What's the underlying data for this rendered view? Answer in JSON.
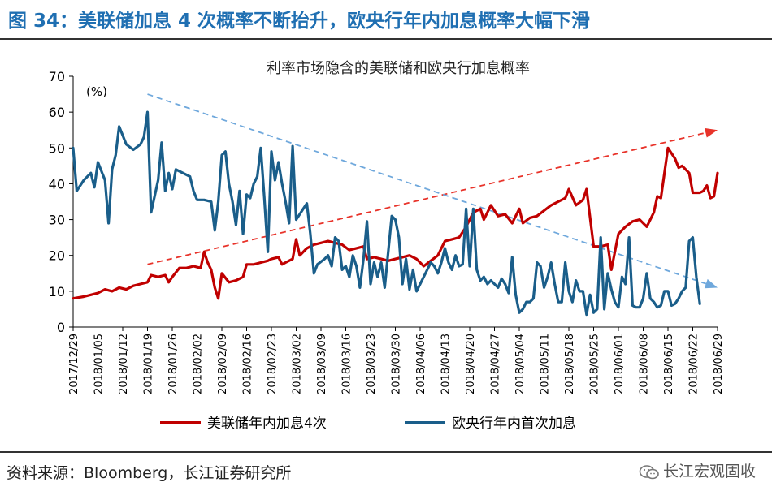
{
  "header": {
    "figure_title": "图 34：美联储加息 4 次概率不断抬升，欧央行年内加息概率大幅下滑"
  },
  "footer": {
    "source": "资料来源：Bloomberg，长江证券研究所",
    "brand": "长江宏观固收",
    "brand_icon": "wechat-icon"
  },
  "chart_data": {
    "type": "line",
    "title": "利率市场隐含的美联储和欧央行加息概率",
    "unit_label": "(%)",
    "ylim": [
      0,
      70
    ],
    "yticks": [
      0,
      10,
      20,
      30,
      40,
      50,
      60,
      70
    ],
    "xlim": [
      "2017-12-29",
      "2018-06-29"
    ],
    "xtick_labels": [
      "2017/12/29",
      "2018/01/05",
      "2018/01/12",
      "2018/01/19",
      "2018/01/26",
      "2018/02/02",
      "2018/02/09",
      "2018/02/16",
      "2018/02/23",
      "2018/03/02",
      "2018/03/09",
      "2018/03/16",
      "2018/03/23",
      "2018/03/30",
      "2018/04/06",
      "2018/04/13",
      "2018/04/20",
      "2018/04/27",
      "2018/05/04",
      "2018/05/11",
      "2018/05/18",
      "2018/05/25",
      "2018/06/01",
      "2018/06/08",
      "2018/06/15",
      "2018/06/22",
      "2018/06/29"
    ],
    "legend_position": "bottom",
    "series": [
      {
        "name": "美联储年内加息4次",
        "color": "#c00000",
        "points": [
          [
            "2017-12-29",
            8
          ],
          [
            "2018-01-01",
            8.5
          ],
          [
            "2018-01-03",
            9
          ],
          [
            "2018-01-05",
            9.5
          ],
          [
            "2018-01-07",
            10.5
          ],
          [
            "2018-01-09",
            10
          ],
          [
            "2018-01-11",
            11
          ],
          [
            "2018-01-13",
            10.5
          ],
          [
            "2018-01-15",
            11.5
          ],
          [
            "2018-01-17",
            12
          ],
          [
            "2018-01-19",
            12.5
          ],
          [
            "2018-01-20",
            14.5
          ],
          [
            "2018-01-22",
            14
          ],
          [
            "2018-01-24",
            14.5
          ],
          [
            "2018-01-25",
            12.5
          ],
          [
            "2018-01-26",
            14
          ],
          [
            "2018-01-28",
            16.5
          ],
          [
            "2018-01-30",
            16.5
          ],
          [
            "2018-02-01",
            17
          ],
          [
            "2018-02-03",
            16.5
          ],
          [
            "2018-02-04",
            21
          ],
          [
            "2018-02-05",
            18
          ],
          [
            "2018-02-06",
            16
          ],
          [
            "2018-02-07",
            11
          ],
          [
            "2018-02-08",
            8
          ],
          [
            "2018-02-09",
            15
          ],
          [
            "2018-02-11",
            12.5
          ],
          [
            "2018-02-13",
            13
          ],
          [
            "2018-02-15",
            14
          ],
          [
            "2018-02-16",
            17.5
          ],
          [
            "2018-02-18",
            17.5
          ],
          [
            "2018-02-20",
            18
          ],
          [
            "2018-02-22",
            18.5
          ],
          [
            "2018-02-23",
            19
          ],
          [
            "2018-02-25",
            19.5
          ],
          [
            "2018-02-26",
            17.5
          ],
          [
            "2018-02-27",
            18
          ],
          [
            "2018-03-01",
            19
          ],
          [
            "2018-03-02",
            24.5
          ],
          [
            "2018-03-03",
            20
          ],
          [
            "2018-03-05",
            22
          ],
          [
            "2018-03-07",
            23
          ],
          [
            "2018-03-09",
            23.5
          ],
          [
            "2018-03-11",
            24
          ],
          [
            "2018-03-13",
            23.5
          ],
          [
            "2018-03-15",
            23
          ],
          [
            "2018-03-17",
            21.5
          ],
          [
            "2018-03-19",
            22
          ],
          [
            "2018-03-21",
            22.5
          ],
          [
            "2018-03-22",
            19
          ],
          [
            "2018-03-24",
            19.5
          ],
          [
            "2018-03-26",
            19
          ],
          [
            "2018-03-28",
            18.5
          ],
          [
            "2018-03-30",
            19
          ],
          [
            "2018-04-01",
            19.5
          ],
          [
            "2018-04-03",
            20
          ],
          [
            "2018-04-05",
            19
          ],
          [
            "2018-04-07",
            17
          ],
          [
            "2018-04-09",
            18.5
          ],
          [
            "2018-04-11",
            20
          ],
          [
            "2018-04-13",
            24
          ],
          [
            "2018-04-15",
            24.5
          ],
          [
            "2018-04-17",
            25
          ],
          [
            "2018-04-19",
            28
          ],
          [
            "2018-04-21",
            32
          ],
          [
            "2018-04-23",
            33
          ],
          [
            "2018-04-24",
            30
          ],
          [
            "2018-04-26",
            34
          ],
          [
            "2018-04-28",
            31
          ],
          [
            "2018-04-30",
            31.5
          ],
          [
            "2018-05-02",
            29
          ],
          [
            "2018-05-04",
            33
          ],
          [
            "2018-05-05",
            29
          ],
          [
            "2018-05-07",
            30.5
          ],
          [
            "2018-05-09",
            31
          ],
          [
            "2018-05-11",
            32.5
          ],
          [
            "2018-05-13",
            34
          ],
          [
            "2018-05-15",
            35
          ],
          [
            "2018-05-17",
            36
          ],
          [
            "2018-05-18",
            38.5
          ],
          [
            "2018-05-20",
            34
          ],
          [
            "2018-05-22",
            35.5
          ],
          [
            "2018-05-23",
            38.5
          ],
          [
            "2018-05-25",
            22.5
          ],
          [
            "2018-05-27",
            22.5
          ],
          [
            "2018-05-29",
            23
          ],
          [
            "2018-05-30",
            16
          ],
          [
            "2018-06-01",
            26
          ],
          [
            "2018-06-03",
            28
          ],
          [
            "2018-06-05",
            29.5
          ],
          [
            "2018-06-07",
            30
          ],
          [
            "2018-06-09",
            28
          ],
          [
            "2018-06-11",
            32
          ],
          [
            "2018-06-12",
            36.5
          ],
          [
            "2018-06-13",
            36
          ],
          [
            "2018-06-15",
            50
          ],
          [
            "2018-06-17",
            47
          ],
          [
            "2018-06-18",
            44.5
          ],
          [
            "2018-06-19",
            45
          ],
          [
            "2018-06-21",
            43
          ],
          [
            "2018-06-22",
            37.5
          ],
          [
            "2018-06-24",
            37.5
          ],
          [
            "2018-06-25",
            38
          ],
          [
            "2018-06-26",
            39.5
          ],
          [
            "2018-06-27",
            36
          ],
          [
            "2018-06-28",
            36.5
          ],
          [
            "2018-06-29",
            43
          ]
        ]
      },
      {
        "name": "欧央行年内首次加息",
        "color": "#1a5e8a",
        "points": [
          [
            "2017-12-29",
            50
          ],
          [
            "2017-12-30",
            38
          ],
          [
            "2018-01-01",
            41
          ],
          [
            "2018-01-03",
            43
          ],
          [
            "2018-01-04",
            39
          ],
          [
            "2018-01-05",
            46
          ],
          [
            "2018-01-07",
            41
          ],
          [
            "2018-01-08",
            29
          ],
          [
            "2018-01-09",
            44
          ],
          [
            "2018-01-10",
            48
          ],
          [
            "2018-01-11",
            56
          ],
          [
            "2018-01-13",
            51
          ],
          [
            "2018-01-15",
            49.5
          ],
          [
            "2018-01-17",
            51
          ],
          [
            "2018-01-18",
            53
          ],
          [
            "2018-01-19",
            60
          ],
          [
            "2018-01-20",
            32
          ],
          [
            "2018-01-22",
            41
          ],
          [
            "2018-01-23",
            51.5
          ],
          [
            "2018-01-24",
            38
          ],
          [
            "2018-01-25",
            43
          ],
          [
            "2018-01-26",
            38.5
          ],
          [
            "2018-01-27",
            44
          ],
          [
            "2018-01-29",
            43
          ],
          [
            "2018-01-31",
            42
          ],
          [
            "2018-02-01",
            38
          ],
          [
            "2018-02-02",
            35.5
          ],
          [
            "2018-02-04",
            35.5
          ],
          [
            "2018-02-06",
            35
          ],
          [
            "2018-02-07",
            27
          ],
          [
            "2018-02-08",
            35
          ],
          [
            "2018-02-09",
            48
          ],
          [
            "2018-02-10",
            49
          ],
          [
            "2018-02-11",
            40
          ],
          [
            "2018-02-12",
            35
          ],
          [
            "2018-02-13",
            28.5
          ],
          [
            "2018-02-14",
            38
          ],
          [
            "2018-02-15",
            26
          ],
          [
            "2018-02-16",
            37
          ],
          [
            "2018-02-17",
            36
          ],
          [
            "2018-02-18",
            40
          ],
          [
            "2018-02-19",
            42
          ],
          [
            "2018-02-20",
            50
          ],
          [
            "2018-02-21",
            36
          ],
          [
            "2018-02-22",
            21
          ],
          [
            "2018-02-23",
            49
          ],
          [
            "2018-02-24",
            41
          ],
          [
            "2018-02-25",
            46
          ],
          [
            "2018-02-26",
            40
          ],
          [
            "2018-02-27",
            35
          ],
          [
            "2018-02-28",
            29
          ],
          [
            "2018-03-01",
            50.5
          ],
          [
            "2018-03-02",
            30
          ],
          [
            "2018-03-04",
            33
          ],
          [
            "2018-03-05",
            34.5
          ],
          [
            "2018-03-06",
            26
          ],
          [
            "2018-03-07",
            15
          ],
          [
            "2018-03-08",
            17.5
          ],
          [
            "2018-03-10",
            19
          ],
          [
            "2018-03-11",
            20
          ],
          [
            "2018-03-12",
            17
          ],
          [
            "2018-03-13",
            25
          ],
          [
            "2018-03-14",
            24
          ],
          [
            "2018-03-15",
            16
          ],
          [
            "2018-03-16",
            17
          ],
          [
            "2018-03-17",
            14
          ],
          [
            "2018-03-18",
            20
          ],
          [
            "2018-03-19",
            17
          ],
          [
            "2018-03-20",
            11
          ],
          [
            "2018-03-21",
            19
          ],
          [
            "2018-03-22",
            29.5
          ],
          [
            "2018-03-23",
            12
          ],
          [
            "2018-03-24",
            18
          ],
          [
            "2018-03-25",
            14
          ],
          [
            "2018-03-26",
            18
          ],
          [
            "2018-03-27",
            11
          ],
          [
            "2018-03-29",
            31
          ],
          [
            "2018-03-30",
            30
          ],
          [
            "2018-03-31",
            25
          ],
          [
            "2018-04-01",
            12
          ],
          [
            "2018-04-02",
            19
          ],
          [
            "2018-04-03",
            10.5
          ],
          [
            "2018-04-04",
            16
          ],
          [
            "2018-04-05",
            10
          ],
          [
            "2018-04-06",
            12
          ],
          [
            "2018-04-07",
            14
          ],
          [
            "2018-04-08",
            16
          ],
          [
            "2018-04-09",
            18
          ],
          [
            "2018-04-10",
            17
          ],
          [
            "2018-04-11",
            15
          ],
          [
            "2018-04-12",
            18
          ],
          [
            "2018-04-13",
            22
          ],
          [
            "2018-04-14",
            18
          ],
          [
            "2018-04-15",
            16
          ],
          [
            "2018-04-16",
            20
          ],
          [
            "2018-04-17",
            17
          ],
          [
            "2018-04-18",
            17.5
          ],
          [
            "2018-04-19",
            33
          ],
          [
            "2018-04-20",
            17
          ],
          [
            "2018-04-21",
            33
          ],
          [
            "2018-04-22",
            16
          ],
          [
            "2018-04-23",
            13
          ],
          [
            "2018-04-24",
            14
          ],
          [
            "2018-04-25",
            12
          ],
          [
            "2018-04-26",
            13
          ],
          [
            "2018-04-27",
            12
          ],
          [
            "2018-04-28",
            11
          ],
          [
            "2018-04-29",
            13.5
          ],
          [
            "2018-04-30",
            12
          ],
          [
            "2018-05-01",
            9.5
          ],
          [
            "2018-05-02",
            19.5
          ],
          [
            "2018-05-03",
            9
          ],
          [
            "2018-05-04",
            4
          ],
          [
            "2018-05-05",
            5
          ],
          [
            "2018-05-06",
            7
          ],
          [
            "2018-05-07",
            7
          ],
          [
            "2018-05-08",
            8
          ],
          [
            "2018-05-09",
            18
          ],
          [
            "2018-05-10",
            17
          ],
          [
            "2018-05-11",
            11
          ],
          [
            "2018-05-12",
            14
          ],
          [
            "2018-05-13",
            18
          ],
          [
            "2018-05-14",
            12
          ],
          [
            "2018-05-15",
            7
          ],
          [
            "2018-05-16",
            7
          ],
          [
            "2018-05-17",
            18
          ],
          [
            "2018-05-18",
            10
          ],
          [
            "2018-05-19",
            7
          ],
          [
            "2018-05-20",
            13
          ],
          [
            "2018-05-21",
            10
          ],
          [
            "2018-05-22",
            10
          ],
          [
            "2018-05-23",
            3.5
          ],
          [
            "2018-05-24",
            9
          ],
          [
            "2018-05-25",
            4
          ],
          [
            "2018-05-26",
            5
          ],
          [
            "2018-05-27",
            25
          ],
          [
            "2018-05-28",
            5
          ],
          [
            "2018-05-29",
            15
          ],
          [
            "2018-05-30",
            10.5
          ],
          [
            "2018-05-31",
            7
          ],
          [
            "2018-06-01",
            5.5
          ],
          [
            "2018-06-02",
            14
          ],
          [
            "2018-06-03",
            12
          ],
          [
            "2018-06-04",
            25
          ],
          [
            "2018-06-05",
            6
          ],
          [
            "2018-06-06",
            5.5
          ],
          [
            "2018-06-07",
            5.5
          ],
          [
            "2018-06-08",
            8
          ],
          [
            "2018-06-09",
            15
          ],
          [
            "2018-06-10",
            8
          ],
          [
            "2018-06-11",
            7
          ],
          [
            "2018-06-12",
            5.5
          ],
          [
            "2018-06-13",
            6
          ],
          [
            "2018-06-14",
            10
          ],
          [
            "2018-06-15",
            10
          ],
          [
            "2018-06-16",
            6
          ],
          [
            "2018-06-17",
            6.5
          ],
          [
            "2018-06-18",
            8
          ],
          [
            "2018-06-19",
            10
          ],
          [
            "2018-06-20",
            11
          ],
          [
            "2018-06-21",
            24
          ],
          [
            "2018-06-22",
            25
          ],
          [
            "2018-06-23",
            14
          ],
          [
            "2018-06-24",
            6.5
          ]
        ]
      }
    ],
    "trend_arrows": [
      {
        "color": "#e8332a",
        "style": "dashed",
        "from": [
          "2018-01-19",
          17.5
        ],
        "to": [
          "2018-06-29",
          55
        ]
      },
      {
        "color": "#6fa8dc",
        "style": "dashed",
        "from": [
          "2018-01-19",
          65
        ],
        "to": [
          "2018-06-29",
          11
        ]
      }
    ]
  }
}
